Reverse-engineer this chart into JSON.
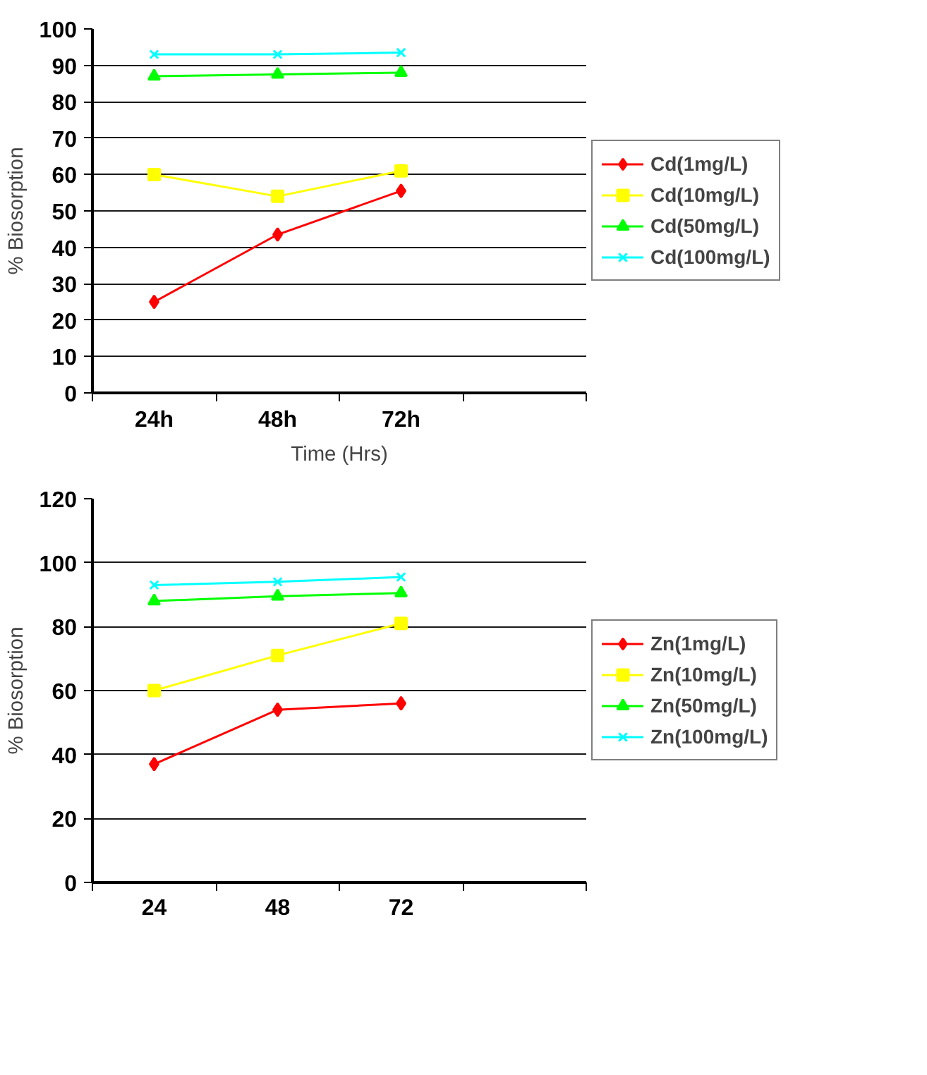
{
  "chart_data": [
    {
      "type": "line",
      "xlabel": "Time (Hrs)",
      "ylabel": "% Biosorption",
      "categories": [
        "24h",
        "48h",
        "72h",
        null
      ],
      "ylim": [
        0,
        100
      ],
      "yticks": [
        0,
        10,
        20,
        30,
        40,
        50,
        60,
        70,
        80,
        90,
        100
      ],
      "grid": "y",
      "legend": "right",
      "series": [
        {
          "name": "Cd(1mg/L)",
          "color": "#ff0000",
          "marker": "diamond",
          "values": [
            25,
            43.5,
            55.5,
            null
          ]
        },
        {
          "name": "Cd(10mg/L)",
          "color": "#ffff00",
          "marker": "square",
          "values": [
            60,
            54,
            61,
            null
          ]
        },
        {
          "name": "Cd(50mg/L)",
          "color": "#00ff00",
          "marker": "triangle",
          "values": [
            87,
            87.5,
            88,
            null
          ]
        },
        {
          "name": "Cd(100mg/L)",
          "color": "#00ffff",
          "marker": "cross",
          "values": [
            93,
            93,
            93.5,
            null
          ]
        }
      ]
    },
    {
      "type": "line",
      "ylabel": "% Biosorption",
      "categories": [
        "24",
        "48",
        "72",
        null
      ],
      "ylim": [
        0,
        120
      ],
      "yticks": [
        0,
        20,
        40,
        60,
        80,
        100,
        120
      ],
      "grid": "y",
      "legend": "right",
      "series": [
        {
          "name": "Zn(1mg/L)",
          "color": "#ff0000",
          "marker": "diamond",
          "values": [
            37,
            54,
            56,
            null
          ]
        },
        {
          "name": "Zn(10mg/L)",
          "color": "#ffff00",
          "marker": "square",
          "values": [
            60,
            71,
            81,
            null
          ]
        },
        {
          "name": "Zn(50mg/L)",
          "color": "#00ff00",
          "marker": "triangle",
          "values": [
            88,
            89.5,
            90.5,
            null
          ]
        },
        {
          "name": "Zn(100mg/L)",
          "color": "#00ffff",
          "marker": "cross",
          "values": [
            93,
            94,
            95.5,
            null
          ]
        }
      ]
    }
  ]
}
